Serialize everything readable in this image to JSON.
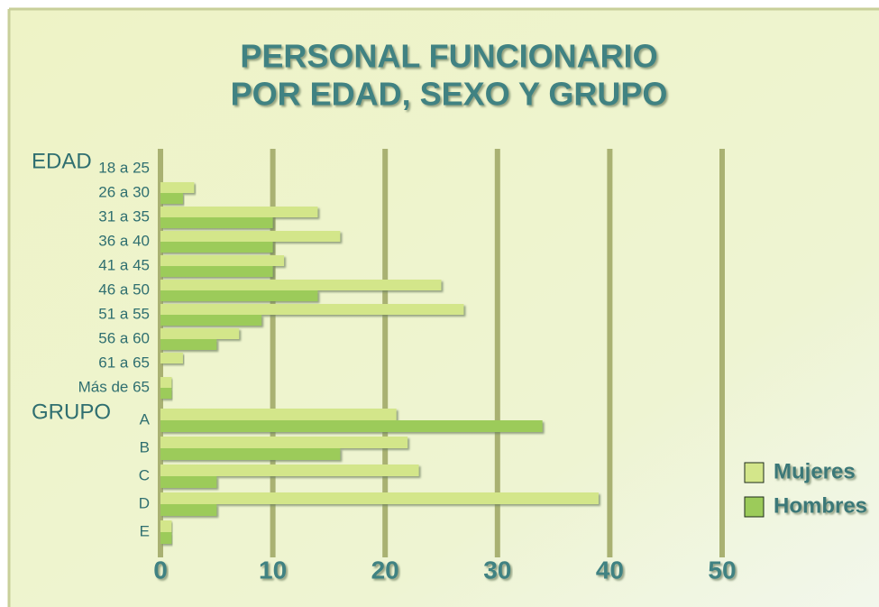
{
  "chart_data": {
    "type": "bar",
    "orientation": "horizontal",
    "title": [
      "PERSONAL FUNCIONARIO",
      "POR EDAD, SEXO Y GRUPO"
    ],
    "series": [
      {
        "name": "Mujeres",
        "color": "#d3e68a"
      },
      {
        "name": "Hombres",
        "color": "#9ccb5a"
      }
    ],
    "groups": [
      {
        "name": "EDAD",
        "categories": [
          "18 a 25",
          "26 a 30",
          "31 a 35",
          "36 a 40",
          "41 a 45",
          "46 a 50",
          "51 a 55",
          "56 a 60",
          "61 a 65",
          "Más de 65"
        ],
        "values": [
          [
            0,
            3,
            14,
            16,
            11,
            25,
            27,
            7,
            2,
            1
          ],
          [
            0,
            2,
            10,
            10,
            10,
            14,
            9,
            5,
            0,
            1
          ]
        ]
      },
      {
        "name": "GRUPO",
        "categories": [
          "A",
          "B",
          "C",
          "D",
          "E"
        ],
        "values": [
          [
            21,
            22,
            23,
            39,
            1
          ],
          [
            34,
            16,
            5,
            5,
            1
          ]
        ]
      }
    ],
    "xlim": [
      0,
      50
    ],
    "xticks": [
      0,
      10,
      20,
      30,
      40,
      50
    ],
    "grid": true,
    "legend": "right"
  }
}
